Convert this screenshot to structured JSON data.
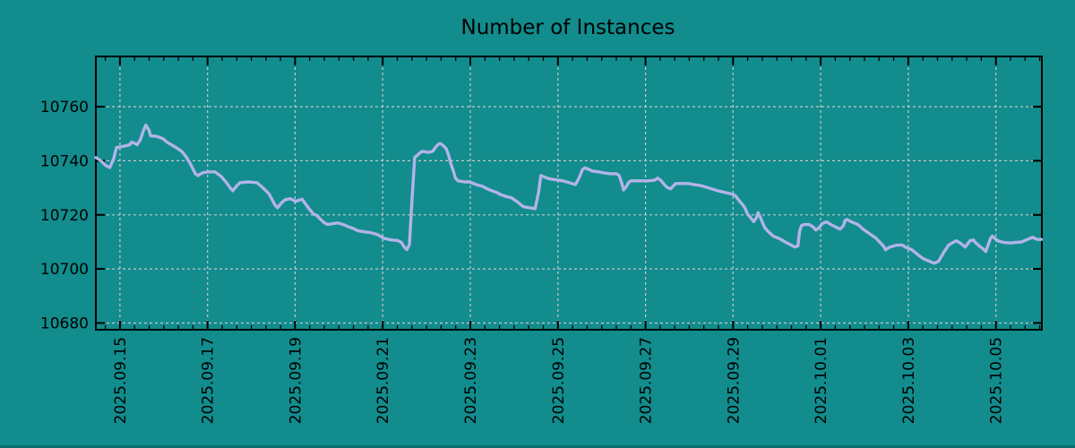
{
  "figure": {
    "title": "Number of Instances"
  },
  "chart_data": {
    "type": "line",
    "title": "Number of Instances",
    "legend": "none",
    "grid": "dashed",
    "colors": {
      "background": "#128c8d",
      "line": "#b3b3e8",
      "grid": "#c8c8c8",
      "frame": "#000000",
      "text": "#000000"
    },
    "x_axis": {
      "tick_labels": [
        "2025.09.15",
        "2025.09.17",
        "2025.09.19",
        "2025.09.21",
        "2025.09.23",
        "2025.09.25",
        "2025.09.27",
        "2025.09.29",
        "2025.10.01",
        "2025.10.03",
        "2025.10.05"
      ],
      "tick_positions_days": [
        0,
        2,
        4,
        6,
        8,
        10,
        12,
        14,
        16,
        18,
        20
      ],
      "minor_tick_interval_days": 0.3333,
      "range_days": [
        -0.55,
        21.05
      ]
    },
    "y_axis": {
      "tick_values": [
        10680,
        10700,
        10720,
        10740,
        10760
      ],
      "range": [
        10677.5,
        10778.6
      ]
    },
    "series": [
      {
        "name": "instances",
        "color": "#b3b3e8",
        "points": [
          [
            -0.55,
            10741.2
          ],
          [
            -0.45,
            10740.2
          ],
          [
            -0.33,
            10738.3
          ],
          [
            -0.23,
            10737.5
          ],
          [
            -0.14,
            10740.9
          ],
          [
            -0.08,
            10744.9
          ],
          [
            0.02,
            10745.2
          ],
          [
            0.12,
            10745.5
          ],
          [
            0.22,
            10745.9
          ],
          [
            0.27,
            10746.9
          ],
          [
            0.33,
            10746.5
          ],
          [
            0.39,
            10745.9
          ],
          [
            0.47,
            10747.9
          ],
          [
            0.53,
            10750.9
          ],
          [
            0.59,
            10753.2
          ],
          [
            0.66,
            10751.4
          ],
          [
            0.7,
            10749.2
          ],
          [
            0.82,
            10749.1
          ],
          [
            0.9,
            10748.7
          ],
          [
            0.99,
            10748.1
          ],
          [
            1.08,
            10746.8
          ],
          [
            1.19,
            10745.8
          ],
          [
            1.29,
            10744.8
          ],
          [
            1.41,
            10743.5
          ],
          [
            1.51,
            10741.5
          ],
          [
            1.62,
            10738.5
          ],
          [
            1.72,
            10735.2
          ],
          [
            1.78,
            10734.5
          ],
          [
            1.88,
            10735.5
          ],
          [
            1.99,
            10735.9
          ],
          [
            2.17,
            10735.9
          ],
          [
            2.31,
            10734.2
          ],
          [
            2.42,
            10732.2
          ],
          [
            2.52,
            10729.9
          ],
          [
            2.58,
            10728.9
          ],
          [
            2.66,
            10730.6
          ],
          [
            2.74,
            10731.9
          ],
          [
            2.93,
            10732.2
          ],
          [
            3.13,
            10731.9
          ],
          [
            3.25,
            10730.2
          ],
          [
            3.4,
            10727.9
          ],
          [
            3.54,
            10723.6
          ],
          [
            3.6,
            10722.6
          ],
          [
            3.68,
            10724.3
          ],
          [
            3.77,
            10725.6
          ],
          [
            3.89,
            10726.0
          ],
          [
            4.01,
            10725.0
          ],
          [
            4.16,
            10725.8
          ],
          [
            4.3,
            10722.6
          ],
          [
            4.42,
            10720.3
          ],
          [
            4.5,
            10719.7
          ],
          [
            4.58,
            10718.3
          ],
          [
            4.67,
            10717.0
          ],
          [
            4.75,
            10716.4
          ],
          [
            4.85,
            10716.7
          ],
          [
            4.97,
            10717.0
          ],
          [
            5.1,
            10716.4
          ],
          [
            5.2,
            10715.7
          ],
          [
            5.32,
            10715.0
          ],
          [
            5.44,
            10714.1
          ],
          [
            5.59,
            10713.7
          ],
          [
            5.73,
            10713.4
          ],
          [
            5.88,
            10712.7
          ],
          [
            6.02,
            10711.4
          ],
          [
            6.08,
            10711.1
          ],
          [
            6.2,
            10710.7
          ],
          [
            6.34,
            10710.5
          ],
          [
            6.43,
            10709.8
          ],
          [
            6.49,
            10708.1
          ],
          [
            6.55,
            10707.1
          ],
          [
            6.61,
            10709.0
          ],
          [
            6.67,
            10726.0
          ],
          [
            6.73,
            10741.2
          ],
          [
            6.84,
            10742.8
          ],
          [
            6.9,
            10743.5
          ],
          [
            7.04,
            10743.1
          ],
          [
            7.14,
            10743.5
          ],
          [
            7.21,
            10745.1
          ],
          [
            7.27,
            10746.1
          ],
          [
            7.31,
            10746.4
          ],
          [
            7.37,
            10745.8
          ],
          [
            7.45,
            10744.5
          ],
          [
            7.51,
            10741.8
          ],
          [
            7.55,
            10739.2
          ],
          [
            7.62,
            10735.9
          ],
          [
            7.66,
            10733.6
          ],
          [
            7.72,
            10732.6
          ],
          [
            7.86,
            10732.2
          ],
          [
            7.98,
            10732.2
          ],
          [
            8.13,
            10731.2
          ],
          [
            8.27,
            10730.6
          ],
          [
            8.39,
            10729.6
          ],
          [
            8.54,
            10728.6
          ],
          [
            8.6,
            10728.3
          ],
          [
            8.68,
            10727.6
          ],
          [
            8.8,
            10726.9
          ],
          [
            8.94,
            10726.3
          ],
          [
            9.09,
            10724.6
          ],
          [
            9.21,
            10723.0
          ],
          [
            9.36,
            10722.6
          ],
          [
            9.48,
            10722.3
          ],
          [
            9.56,
            10728.5
          ],
          [
            9.61,
            10734.5
          ],
          [
            9.71,
            10733.9
          ],
          [
            9.81,
            10733.3
          ],
          [
            9.95,
            10733.0
          ],
          [
            10.11,
            10732.6
          ],
          [
            10.28,
            10731.8
          ],
          [
            10.4,
            10731.2
          ],
          [
            10.48,
            10733.5
          ],
          [
            10.56,
            10736.8
          ],
          [
            10.62,
            10737.4
          ],
          [
            10.69,
            10736.9
          ],
          [
            10.79,
            10736.2
          ],
          [
            10.93,
            10735.9
          ],
          [
            11.05,
            10735.5
          ],
          [
            11.2,
            10735.2
          ],
          [
            11.34,
            10735.2
          ],
          [
            11.4,
            10734.5
          ],
          [
            11.46,
            10731.6
          ],
          [
            11.5,
            10729.2
          ],
          [
            11.57,
            10730.6
          ],
          [
            11.61,
            10731.9
          ],
          [
            11.67,
            10732.6
          ],
          [
            11.81,
            10732.6
          ],
          [
            11.96,
            10732.6
          ],
          [
            12.08,
            10732.6
          ],
          [
            12.22,
            10732.9
          ],
          [
            12.28,
            10733.6
          ],
          [
            12.36,
            10732.6
          ],
          [
            12.43,
            10731.2
          ],
          [
            12.49,
            10730.2
          ],
          [
            12.57,
            10729.6
          ],
          [
            12.63,
            10730.6
          ],
          [
            12.69,
            10731.6
          ],
          [
            12.83,
            10731.6
          ],
          [
            12.98,
            10731.6
          ],
          [
            13.1,
            10731.2
          ],
          [
            13.24,
            10730.9
          ],
          [
            13.39,
            10730.2
          ],
          [
            13.51,
            10729.6
          ],
          [
            13.65,
            10728.9
          ],
          [
            13.8,
            10728.3
          ],
          [
            13.92,
            10727.9
          ],
          [
            14.0,
            10727.6
          ],
          [
            14.06,
            10726.9
          ],
          [
            14.12,
            10725.6
          ],
          [
            14.21,
            10723.9
          ],
          [
            14.27,
            10722.6
          ],
          [
            14.33,
            10720.3
          ],
          [
            14.41,
            10718.7
          ],
          [
            14.47,
            10717.5
          ],
          [
            14.53,
            10718.8
          ],
          [
            14.57,
            10720.8
          ],
          [
            14.62,
            10719.2
          ],
          [
            14.68,
            10716.8
          ],
          [
            14.72,
            10715.4
          ],
          [
            14.8,
            10713.9
          ],
          [
            14.92,
            10712.1
          ],
          [
            15.07,
            10711.1
          ],
          [
            15.21,
            10709.8
          ],
          [
            15.33,
            10708.8
          ],
          [
            15.41,
            10708.1
          ],
          [
            15.48,
            10708.5
          ],
          [
            15.52,
            10714.0
          ],
          [
            15.56,
            10716.0
          ],
          [
            15.62,
            10716.4
          ],
          [
            15.74,
            10716.4
          ],
          [
            15.83,
            10715.5
          ],
          [
            15.89,
            10714.4
          ],
          [
            15.96,
            10715.2
          ],
          [
            16.03,
            10716.7
          ],
          [
            16.13,
            10717.4
          ],
          [
            16.23,
            10716.4
          ],
          [
            16.36,
            10715.4
          ],
          [
            16.44,
            10714.7
          ],
          [
            16.52,
            10716.0
          ],
          [
            16.56,
            10718.0
          ],
          [
            16.6,
            10718.3
          ],
          [
            16.7,
            10717.4
          ],
          [
            16.85,
            10716.4
          ],
          [
            16.97,
            10714.7
          ],
          [
            17.11,
            10713.1
          ],
          [
            17.26,
            10711.4
          ],
          [
            17.38,
            10709.4
          ],
          [
            17.45,
            10708.1
          ],
          [
            17.48,
            10707.1
          ],
          [
            17.58,
            10708.1
          ],
          [
            17.73,
            10708.8
          ],
          [
            17.87,
            10708.8
          ],
          [
            17.93,
            10708.1
          ],
          [
            18.08,
            10707.1
          ],
          [
            18.2,
            10705.5
          ],
          [
            18.34,
            10703.8
          ],
          [
            18.49,
            10702.8
          ],
          [
            18.59,
            10702.1
          ],
          [
            18.69,
            10702.8
          ],
          [
            18.81,
            10706.1
          ],
          [
            18.92,
            10708.8
          ],
          [
            19.02,
            10709.8
          ],
          [
            19.1,
            10710.4
          ],
          [
            19.2,
            10709.4
          ],
          [
            19.3,
            10708.1
          ],
          [
            19.41,
            10710.4
          ],
          [
            19.49,
            10710.7
          ],
          [
            19.53,
            10709.8
          ],
          [
            19.63,
            10708.4
          ],
          [
            19.71,
            10707.4
          ],
          [
            19.77,
            10706.4
          ],
          [
            19.88,
            10711.4
          ],
          [
            19.92,
            10712.1
          ],
          [
            20.04,
            10710.4
          ],
          [
            20.18,
            10709.8
          ],
          [
            20.33,
            10709.6
          ],
          [
            20.45,
            10709.8
          ],
          [
            20.59,
            10710.0
          ],
          [
            20.65,
            10710.4
          ],
          [
            20.8,
            10711.4
          ],
          [
            20.84,
            10711.7
          ],
          [
            20.94,
            10710.9
          ],
          [
            21.04,
            10710.9
          ]
        ]
      }
    ]
  }
}
